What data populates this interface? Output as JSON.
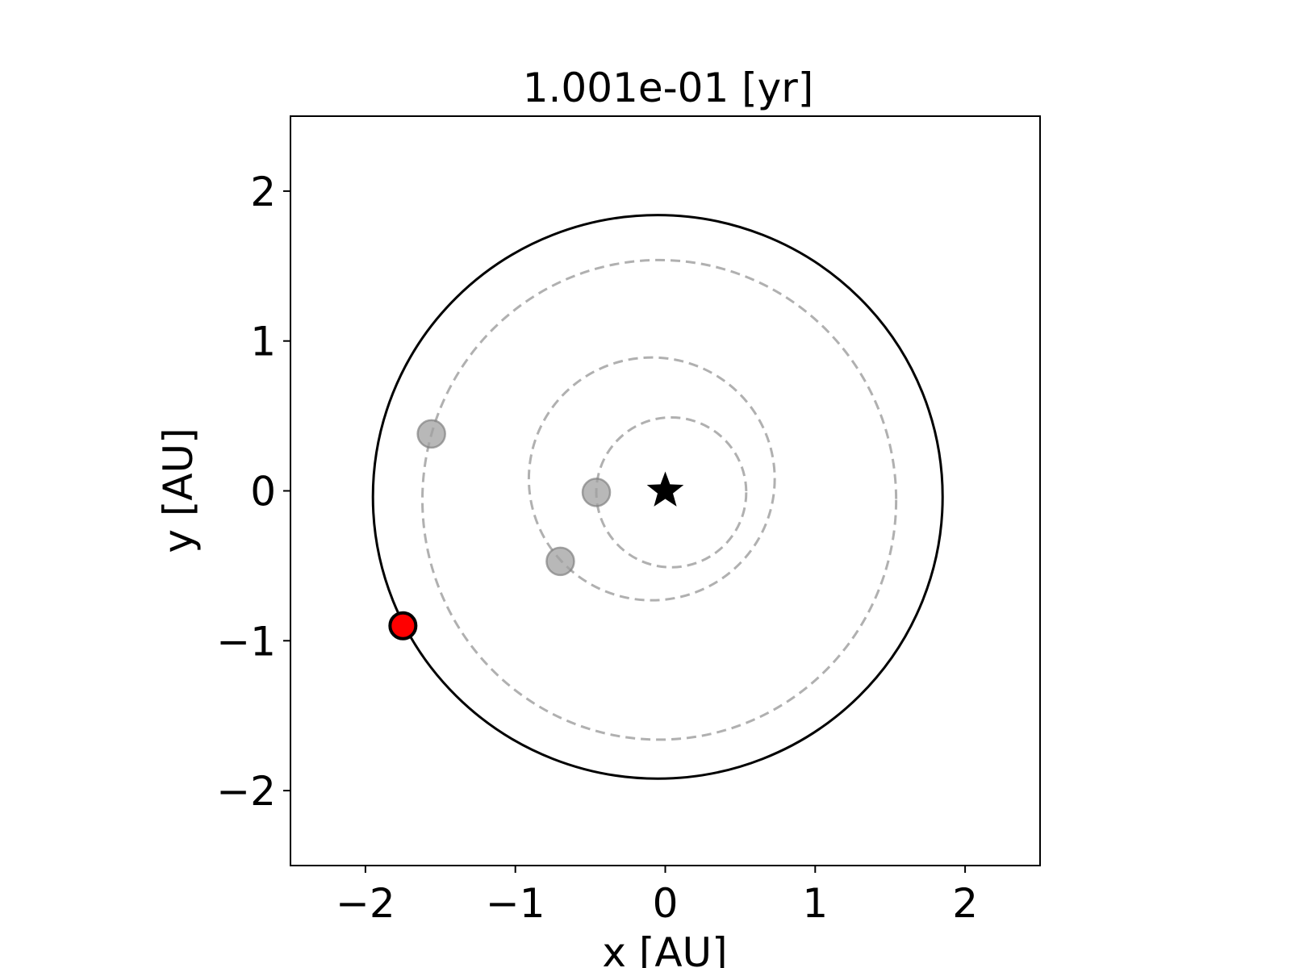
{
  "chart_data": {
    "type": "scatter",
    "title": "1.001e-01 [yr]",
    "xlabel": "x [AU]",
    "ylabel": "y [AU]",
    "xlim": [
      -2.5,
      2.5
    ],
    "ylim": [
      -2.5,
      2.5
    ],
    "xticks": [
      -2,
      -1,
      0,
      1,
      2
    ],
    "yticks": [
      -2,
      -1,
      0,
      1,
      2
    ],
    "tick_labels": [
      "−2",
      "−1",
      "0",
      "1",
      "2"
    ],
    "grid": false,
    "star": {
      "x": 0.0,
      "y": 0.0,
      "color": "#000000"
    },
    "highlighted_orbit": {
      "center_x": -0.05,
      "center_y": -0.04,
      "radius_x": 1.9,
      "radius_y": 1.88,
      "line": "solid",
      "color": "#000000"
    },
    "highlighted_body": {
      "x": -1.75,
      "y": -0.9,
      "color": "#ff0000",
      "edge_color": "#000000"
    },
    "other_orbits": [
      {
        "center_x": 0.04,
        "center_y": -0.01,
        "radius_x": 0.5,
        "radius_y": 0.5,
        "line": "dashed",
        "color": "#b0b0b0"
      },
      {
        "center_x": -0.09,
        "center_y": 0.08,
        "radius_x": 0.82,
        "radius_y": 0.81,
        "line": "dashed",
        "color": "#b0b0b0"
      },
      {
        "center_x": -0.04,
        "center_y": -0.06,
        "radius_x": 1.58,
        "radius_y": 1.6,
        "line": "dashed",
        "color": "#b0b0b0"
      }
    ],
    "other_bodies": [
      {
        "x": -0.46,
        "y": -0.01,
        "color": "#a0a0a0"
      },
      {
        "x": -0.7,
        "y": -0.47,
        "color": "#a0a0a0"
      },
      {
        "x": -1.56,
        "y": 0.38,
        "color": "#a0a0a0"
      }
    ]
  }
}
